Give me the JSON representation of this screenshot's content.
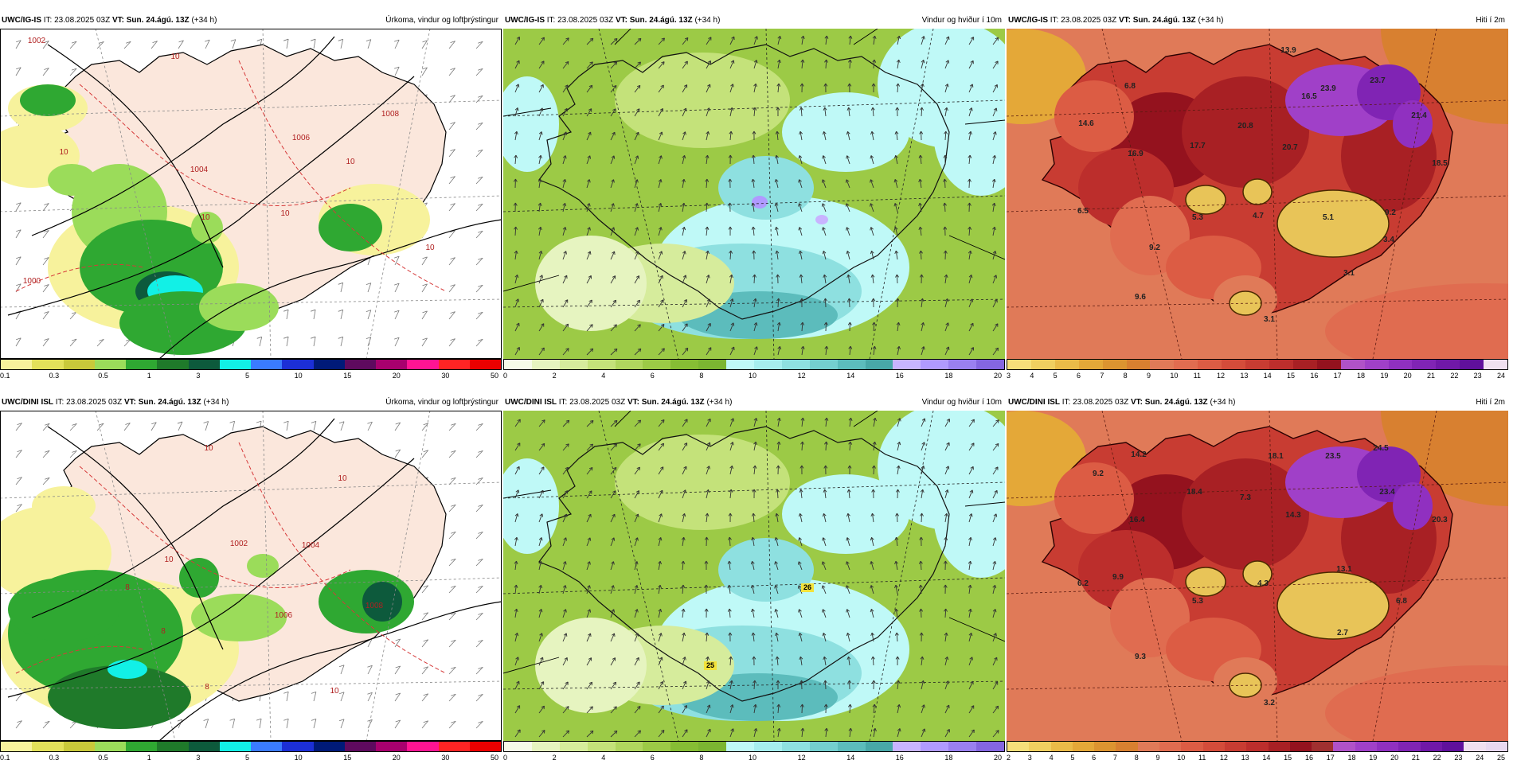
{
  "panels": [
    {
      "id": "p1",
      "model": "UWC/IG-IS",
      "it_label": "IT:",
      "it": "23.08.2025 03Z",
      "vt_label": "VT:",
      "vt": "Sun. 24.ágú. 13Z",
      "lead": "(+34 h)",
      "title": "Úrkoma, vindur og loftþrýstingur",
      "kind": "precip",
      "colorbar": {
        "colors": [
          "#f7f29c",
          "#e2e05a",
          "#c9c93a",
          "#9bdc5a",
          "#2fa832",
          "#1f7a2a",
          "#0d5a3c",
          "#12f0e6",
          "#3a7bff",
          "#1c2fd6",
          "#001a78",
          "#5e0a5e",
          "#a8006e",
          "#ff1493",
          "#ff2424",
          "#ea0000"
        ],
        "ticks": [
          "0.1",
          "0.3",
          "0.5",
          "1",
          "3",
          "5",
          "10",
          "15",
          "20",
          "30",
          "50"
        ]
      },
      "labels": [
        "1002",
        "1004",
        "1006",
        "1008",
        "1000",
        "10",
        "10",
        "10",
        "10",
        "10",
        "10"
      ]
    },
    {
      "id": "p2",
      "model": "UWC/IG-IS",
      "it_label": "IT:",
      "it": "23.08.2025 03Z",
      "vt_label": "VT:",
      "vt": "Sun. 24.ágú. 13Z",
      "lead": "(+34 h)",
      "title": "Vindur og hviður í 10m",
      "kind": "wind",
      "colorbar": {
        "colors": [
          "#f6fbe8",
          "#e6f4c0",
          "#d6ec9c",
          "#c4e27a",
          "#b0d65e",
          "#9cca46",
          "#86bd34",
          "#7bb531",
          "#bff9f7",
          "#a6eeee",
          "#8ee0e0",
          "#74cfcf",
          "#5cbcbc",
          "#48a8a8",
          "#c8b4ff",
          "#b09aff",
          "#9a80f0",
          "#8466e0"
        ],
        "ticks": [
          "0",
          "2",
          "4",
          "6",
          "8",
          "10",
          "12",
          "14",
          "16",
          "18",
          "20"
        ]
      },
      "labels": []
    },
    {
      "id": "p3",
      "model": "UWC/IG-IS",
      "it_label": "IT:",
      "it": "23.08.2025 03Z",
      "vt_label": "VT:",
      "vt": "Sun. 24.ágú. 13Z",
      "lead": "(+34 h)",
      "title": "Hiti í 2m",
      "kind": "temp",
      "colorbar": {
        "colors": [
          "#f6df7a",
          "#f0cf60",
          "#eabb48",
          "#e4a838",
          "#dc9430",
          "#d88030",
          "#e07a58",
          "#e06c50",
          "#dc5c44",
          "#d44c3a",
          "#c83c32",
          "#bc2e2c",
          "#a82024",
          "#94121e",
          "#b052c8",
          "#a040c8",
          "#9030c0",
          "#8024b4",
          "#7018a8",
          "#60109c",
          "#f0e0f0"
        ],
        "ticks": [
          "3",
          "4",
          "5",
          "6",
          "7",
          "8",
          "9",
          "10",
          "11",
          "12",
          "13",
          "14",
          "15",
          "16",
          "17",
          "18",
          "19",
          "20",
          "21",
          "22",
          "23",
          "24"
        ]
      },
      "labels": [
        "13.9",
        "6.8",
        "23.9",
        "23.7",
        "14.6",
        "18.5",
        "21.4",
        "16.9",
        "17.7",
        "20.8",
        "20.7",
        "16.5",
        "6.5",
        "5.3",
        "4.7",
        "5.1",
        "9.2",
        "9.2",
        "3.4",
        "3.1",
        "9.6",
        "3.1"
      ]
    },
    {
      "id": "p4",
      "model": "UWC/DINI ISL",
      "it_label": "IT:",
      "it": "23.08.2025 03Z",
      "vt_label": "VT:",
      "vt": "Sun. 24.ágú. 13Z",
      "lead": "(+34 h)",
      "title": "Úrkoma, vindur og loftþrýstingur",
      "kind": "precip",
      "colorbar": {
        "colors": [
          "#f7f29c",
          "#e2e05a",
          "#c9c93a",
          "#9bdc5a",
          "#2fa832",
          "#1f7a2a",
          "#0d5a3c",
          "#12f0e6",
          "#3a7bff",
          "#1c2fd6",
          "#001a78",
          "#5e0a5e",
          "#a8006e",
          "#ff1493",
          "#ff2424",
          "#ea0000"
        ],
        "ticks": [
          "0.1",
          "0.3",
          "0.5",
          "1",
          "3",
          "5",
          "10",
          "15",
          "20",
          "30",
          "50"
        ]
      },
      "labels": [
        "1004",
        "1006",
        "1008",
        "1002",
        "10",
        "10",
        "10",
        "8",
        "8",
        "8",
        "10"
      ]
    },
    {
      "id": "p5",
      "model": "UWC/DINI ISL",
      "it_label": "IT:",
      "it": "23.08.2025 03Z",
      "vt_label": "VT:",
      "vt": "Sun. 24.ágú. 13Z",
      "lead": "(+34 h)",
      "title": "Vindur og hviður í 10m",
      "kind": "wind",
      "colorbar": {
        "colors": [
          "#f6fbe8",
          "#e6f4c0",
          "#d6ec9c",
          "#c4e27a",
          "#b0d65e",
          "#9cca46",
          "#86bd34",
          "#7bb531",
          "#bff9f7",
          "#a6eeee",
          "#8ee0e0",
          "#74cfcf",
          "#5cbcbc",
          "#48a8a8",
          "#c8b4ff",
          "#b09aff",
          "#9a80f0",
          "#8466e0"
        ],
        "ticks": [
          "0",
          "2",
          "4",
          "6",
          "8",
          "10",
          "12",
          "14",
          "16",
          "18",
          "20"
        ]
      },
      "labels": [
        "26",
        "25"
      ]
    },
    {
      "id": "p6",
      "model": "UWC/DINI ISL",
      "it_label": "IT:",
      "it": "23.08.2025 03Z",
      "vt_label": "VT:",
      "vt": "Sun. 24.ágú. 13Z",
      "lead": "(+34 h)",
      "title": "Hiti í 2m",
      "kind": "temp",
      "colorbar": {
        "colors": [
          "#f6df7a",
          "#f0cf60",
          "#eabb48",
          "#e4a838",
          "#dc9430",
          "#d88030",
          "#e07a58",
          "#e06c50",
          "#dc5c44",
          "#d44c3a",
          "#c83c32",
          "#bc2e2c",
          "#a82024",
          "#94121e",
          "#a03030",
          "#b052c8",
          "#a040c8",
          "#9030c0",
          "#8024b4",
          "#7018a8",
          "#60109c",
          "#f0e0f0",
          "#e8d8f0"
        ],
        "ticks": [
          "2",
          "3",
          "4",
          "5",
          "6",
          "7",
          "8",
          "9",
          "10",
          "11",
          "12",
          "13",
          "14",
          "15",
          "16",
          "17",
          "18",
          "19",
          "20",
          "21",
          "22",
          "23",
          "24",
          "25"
        ]
      },
      "labels": [
        "14.2",
        "18.1",
        "23.5",
        "24.5",
        "9.2",
        "23.4",
        "18.4",
        "7.3",
        "16.4",
        "14.3",
        "20.3",
        "6.2",
        "9.9",
        "13.1",
        "4.3",
        "5.3",
        "6.8",
        "2.7",
        "9.3",
        "3.2"
      ]
    }
  ]
}
